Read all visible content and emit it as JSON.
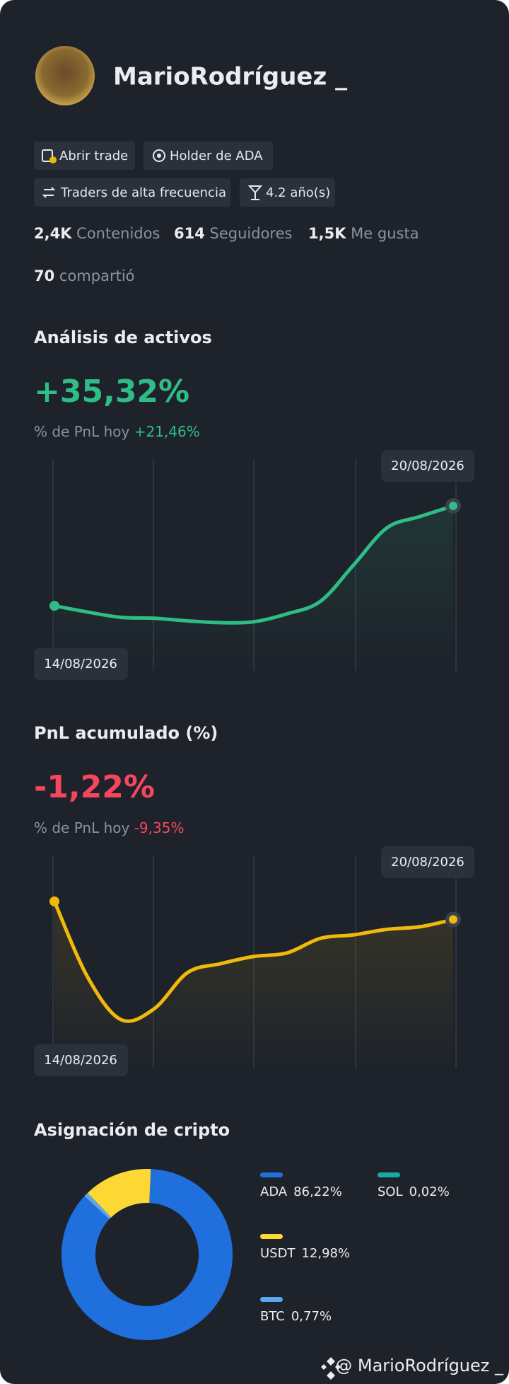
{
  "profile": {
    "name": "MarioRodríguez _"
  },
  "tags": [
    "Abrir trade",
    "Holder de ADA",
    "Traders de alta frecuencia",
    "4.2 año(s)"
  ],
  "stats": [
    {
      "value": "2,4K",
      "label": "Contenidos"
    },
    {
      "value": "614",
      "label": "Seguidores"
    },
    {
      "value": "1,5K",
      "label": "Me gusta"
    },
    {
      "value": "70",
      "label": "compartió"
    }
  ],
  "asset_analysis": {
    "title": "Análisis de activos",
    "pnl": "+35,32%",
    "today_label": "% de PnL hoy",
    "today_value": "+21,46%",
    "chart": {
      "type": "line",
      "start_date": "14/08/2026",
      "end_date": "20/08/2026",
      "color": "#2ebd85",
      "values": [
        0,
        -2.19,
        -4.06,
        -4.38,
        -5.31,
        -5.94,
        -5.63,
        -2.81,
        1.56,
        14.38,
        27.5,
        31.56,
        35.32
      ]
    }
  },
  "cumulative_pnl": {
    "title": "PnL acumulado (%)",
    "pnl": "-1,22%",
    "today_label": "% de PnL hoy",
    "today_value": "-9,35%",
    "chart": {
      "type": "line",
      "start_date": "14/08/2026",
      "end_date": "20/08/2026",
      "color": "#f0b90b",
      "values": [
        0,
        -5.12,
        -7.99,
        -7.26,
        -4.82,
        -4.21,
        -3.72,
        -3.48,
        -2.5,
        -2.26,
        -1.89,
        -1.71,
        -1.22
      ]
    }
  },
  "allocation": {
    "title": "Asignación de cripto",
    "chart": {
      "type": "donut",
      "categories": [
        "ADA",
        "SOL",
        "USDT",
        "BTC"
      ],
      "values": [
        86.22,
        0.02,
        12.98,
        0.77
      ],
      "value_labels": [
        "86,22%",
        "0,02%",
        "12,98%",
        "0,77%"
      ],
      "colors": [
        "#1f6fdc",
        "#19a8a2",
        "#fdd835",
        "#5aa7f0"
      ]
    }
  },
  "footer": {
    "handle": "@ MarioRodríguez _"
  }
}
